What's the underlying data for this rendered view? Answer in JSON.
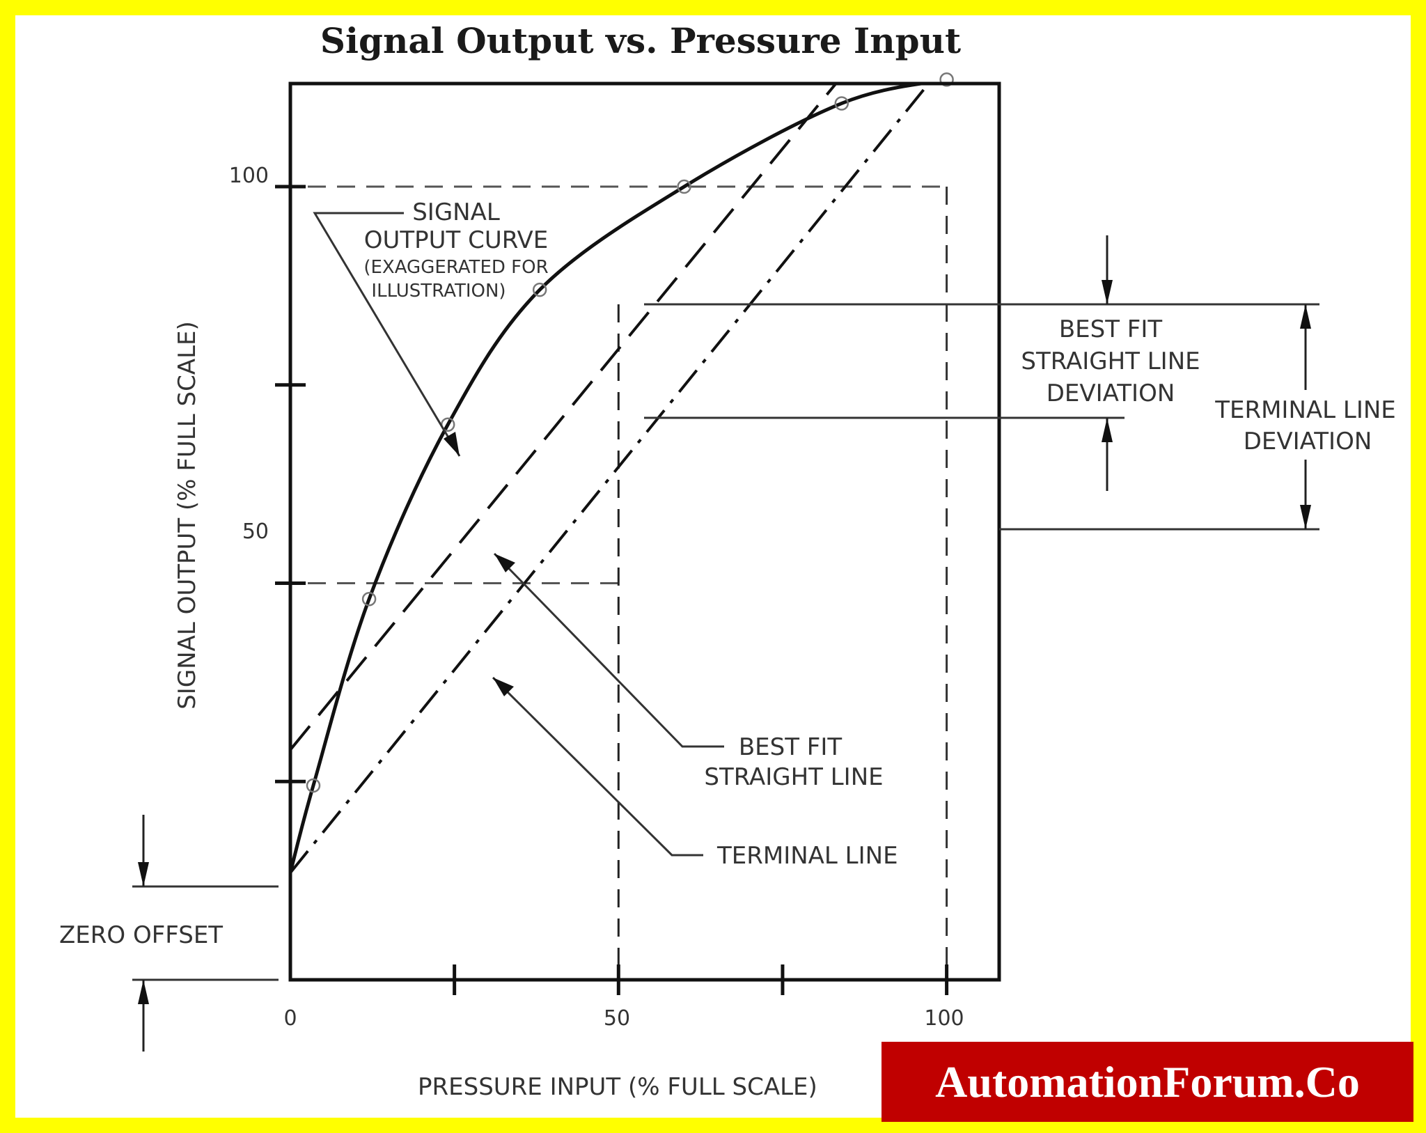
{
  "chart_data": {
    "type": "line",
    "title": "Signal Output vs. Pressure Input",
    "xlabel": "PRESSURE INPUT (% FULL SCALE)",
    "ylabel": "SIGNAL OUTPUT (% FULL SCALE)",
    "xlim": [
      0,
      108
    ],
    "ylim": [
      0,
      113
    ],
    "x_ticks": [
      0,
      25,
      50,
      75,
      100
    ],
    "x_tick_labels": [
      "0",
      "50",
      "100"
    ],
    "y_ticks": [
      25,
      50,
      75,
      100
    ],
    "y_tick_labels": [
      "50",
      "100"
    ],
    "grid": false,
    "series": [
      {
        "name": "SIGNAL OUTPUT CURVE",
        "style": "solid",
        "x": [
          0,
          3.5,
          12,
          24,
          38,
          60,
          84,
          100
        ],
        "y": [
          13.5,
          24.5,
          48,
          70,
          87,
          100,
          110.5,
          113.5
        ]
      },
      {
        "name": "BEST FIT STRAIGHT LINE",
        "style": "dashed",
        "x": [
          0,
          95
        ],
        "y": [
          29,
          125
        ]
      },
      {
        "name": "TERMINAL LINE",
        "style": "dash-dot",
        "x": [
          0,
          108
        ],
        "y": [
          13.5,
          124
        ]
      }
    ],
    "annotations": {
      "signal_output_curve": [
        "SIGNAL",
        "OUTPUT CURVE",
        "(EXAGGERATED FOR",
        "ILLUSTRATION)"
      ],
      "best_fit_line": [
        "BEST FIT",
        "STRAIGHT LINE"
      ],
      "terminal_line": "TERMINAL LINE",
      "best_fit_deviation": [
        "BEST FIT",
        "STRAIGHT LINE",
        "DEVIATION"
      ],
      "terminal_line_deviation": [
        "TERMINAL LINE",
        "DEVIATION"
      ],
      "zero_offset": "ZERO OFFSET"
    }
  },
  "watermark": "AutomationForum.Co",
  "colors": {
    "frame": "#ffff00",
    "brand_bg": "#c00000",
    "ink": "#222222"
  }
}
